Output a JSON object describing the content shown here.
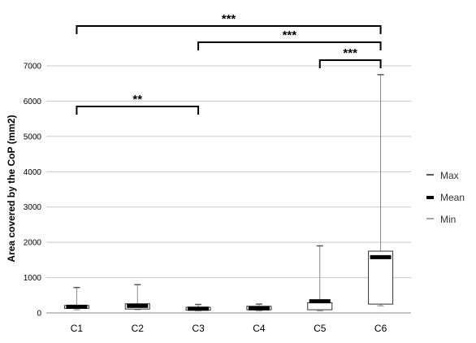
{
  "chart_data": {
    "type": "box",
    "ylabel": "Area covered by the CoP (mm2)",
    "ylim": [
      0,
      7000
    ],
    "yticks": [
      0,
      1000,
      2000,
      3000,
      4000,
      5000,
      6000,
      7000
    ],
    "grid": true,
    "legend_position": "right",
    "categories": [
      "C1",
      "C2",
      "C3",
      "C4",
      "C5",
      "C6"
    ],
    "boxes": [
      {
        "max": 720,
        "q3": 210,
        "mean": 175,
        "q1": 130,
        "min": 90
      },
      {
        "max": 800,
        "q3": 260,
        "mean": 200,
        "q1": 110,
        "min": 95
      },
      {
        "max": 240,
        "q3": 160,
        "mean": 120,
        "q1": 80,
        "min": 60
      },
      {
        "max": 250,
        "q3": 190,
        "mean": 130,
        "q1": 90,
        "min": 60
      },
      {
        "max": 1900,
        "q3": 290,
        "mean": 330,
        "q1": 90,
        "min": 60
      },
      {
        "max": 6750,
        "q3": 1750,
        "mean": 1580,
        "q1": 250,
        "min": 200
      }
    ],
    "legend": [
      {
        "label": "Max",
        "color": "#595959"
      },
      {
        "label": "Mean",
        "color": "#000000"
      },
      {
        "label": "Min",
        "color": "#a6a6a6"
      }
    ],
    "significance": [
      {
        "from": "C1",
        "to": "C6",
        "label": "***"
      },
      {
        "from": "C3",
        "to": "C6",
        "label": "***"
      },
      {
        "from": "C5",
        "to": "C6",
        "label": "***"
      },
      {
        "from": "C1",
        "to": "C3",
        "label": "**"
      }
    ]
  }
}
